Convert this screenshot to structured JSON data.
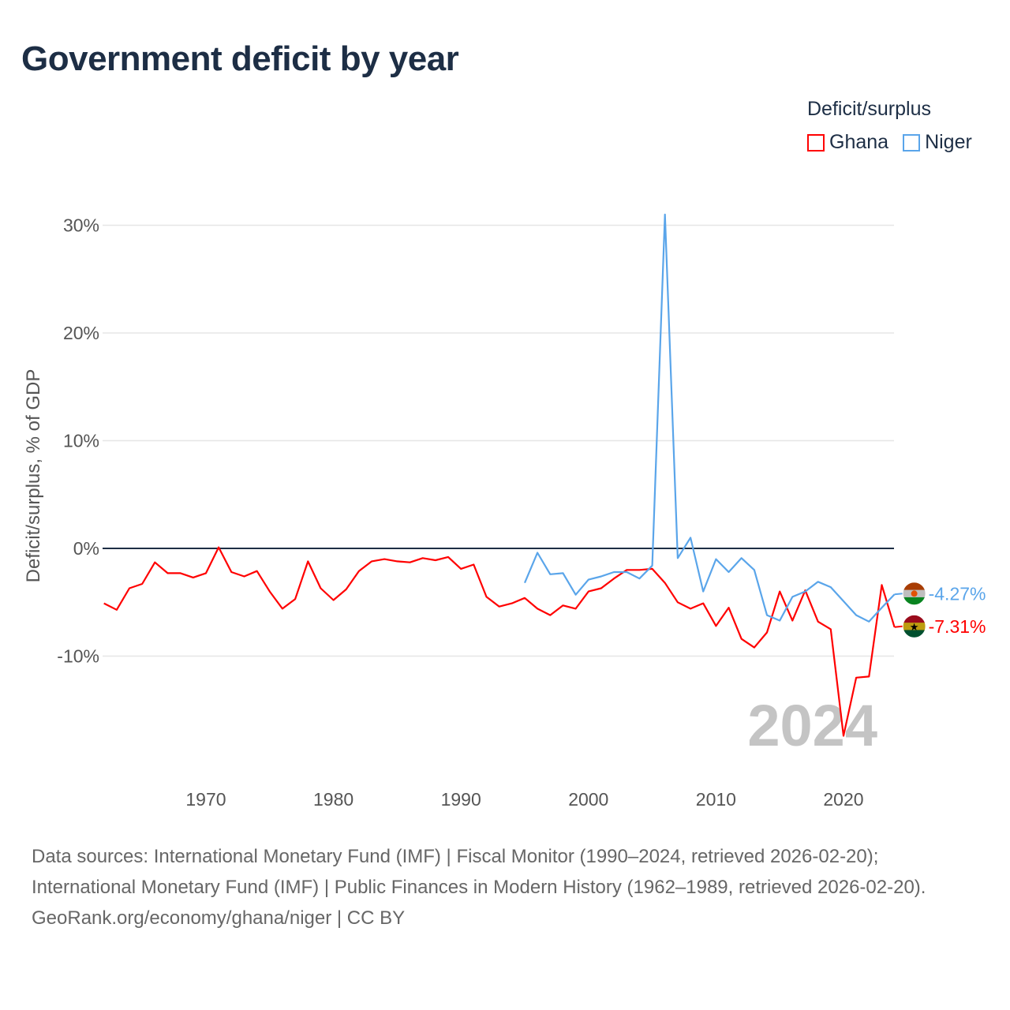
{
  "title": "Government deficit by year",
  "legend": {
    "title": "Deficit/surplus",
    "items": [
      {
        "name": "Ghana",
        "color": "#ff0000"
      },
      {
        "name": "Niger",
        "color": "#5aa5ea"
      }
    ]
  },
  "watermark_year": "2024",
  "footer": {
    "sources": "Data sources: International Monetary Fund (IMF) | Fiscal Monitor (1990–2024, retrieved 2026-02-20); International Monetary Fund (IMF) | Public Finances in Modern History (1962–1989, retrieved 2026-02-20).",
    "credit": "GeoRank.org/economy/ghana/niger | CC BY"
  },
  "chart_data": {
    "type": "line",
    "title": "Government deficit by year",
    "xlabel": "",
    "ylabel": "Deficit/surplus, % of GDP",
    "xlim": [
      1962,
      2024
    ],
    "ylim": [
      -19,
      31
    ],
    "x_ticks": [
      1970,
      1980,
      1990,
      2000,
      2010,
      2020
    ],
    "y_ticks": [
      {
        "value": 30,
        "label": "30%"
      },
      {
        "value": 20,
        "label": "20%"
      },
      {
        "value": 10,
        "label": "10%"
      },
      {
        "value": 0,
        "label": "0%"
      },
      {
        "value": -10,
        "label": "-10%"
      }
    ],
    "grid": true,
    "legend_position": "top-right",
    "series": [
      {
        "name": "Ghana",
        "color": "#ff0000",
        "end_label": "-7.31%",
        "x_start": 1962,
        "values": [
          -5.1,
          -5.7,
          -3.7,
          -3.3,
          -1.3,
          -2.3,
          -2.3,
          -2.7,
          -2.3,
          0.1,
          -2.2,
          -2.6,
          -2.1,
          -4.0,
          -5.6,
          -4.7,
          -1.2,
          -3.7,
          -4.8,
          -3.8,
          -2.1,
          -1.2,
          -1.0,
          -1.2,
          -1.3,
          -0.9,
          -1.1,
          -0.8,
          -1.9,
          -1.5,
          -4.5,
          -5.4,
          -5.1,
          -4.6,
          -5.6,
          -6.2,
          -5.3,
          -5.6,
          -4.0,
          -3.7,
          -2.8,
          -2.0,
          -2.0,
          -1.9,
          -3.2,
          -5.0,
          -5.6,
          -5.1,
          -7.2,
          -5.5,
          -8.4,
          -9.2,
          -7.8,
          -4.0,
          -6.7,
          -3.9,
          -6.8,
          -7.5,
          -17.4,
          -12.0,
          -11.9,
          -3.4,
          -7.31
        ]
      },
      {
        "name": "Niger",
        "color": "#5aa5ea",
        "end_label": "-4.27%",
        "x_start": 1995,
        "values": [
          -3.2,
          -0.4,
          -2.4,
          -2.3,
          -4.3,
          -2.9,
          -2.6,
          -2.2,
          -2.2,
          -2.8,
          -1.6,
          31.0,
          -0.9,
          1.0,
          -4.0,
          -1.0,
          -2.2,
          -0.9,
          -2.0,
          -6.2,
          -6.7,
          -4.5,
          -4.0,
          -3.1,
          -3.6,
          -4.9,
          -6.2,
          -6.8,
          -5.5,
          -4.27
        ]
      }
    ]
  }
}
